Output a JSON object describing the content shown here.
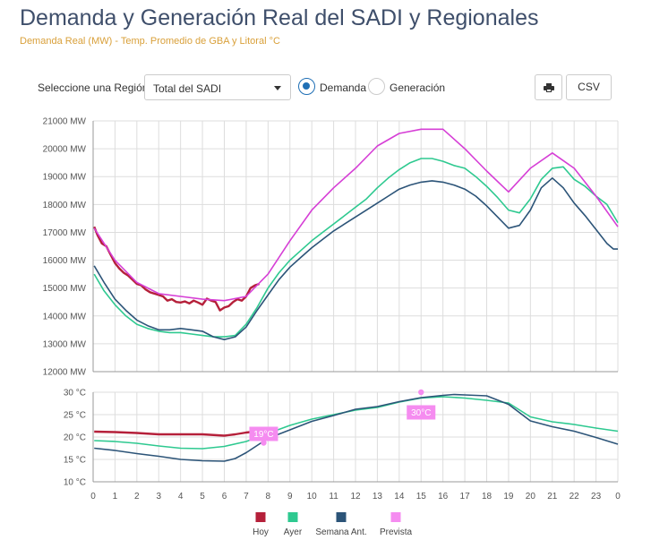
{
  "title": "Demanda y Generación Real del SADI y Regionales",
  "subtitle": "Demanda Real (MW) - Temp. Promedio de GBA y Litoral °C",
  "toolbar": {
    "region_label": "Seleccione una Región",
    "region_value": "Total del SADI",
    "radio_demanda": "Demanda",
    "radio_generacion": "Generación",
    "csv_label": "CSV"
  },
  "colors": {
    "hoy": "#b5203a",
    "ayer": "#2ec990",
    "semana": "#2c5478",
    "prevista": "#d63fd6",
    "prevista_legend": "#f58cf0",
    "grid": "#dddddd"
  },
  "chart_data": [
    {
      "type": "line",
      "title": "",
      "ylim": [
        12000,
        21000
      ],
      "y_unit": "MW",
      "y_ticks": [
        12000,
        13000,
        14000,
        15000,
        16000,
        17000,
        18000,
        19000,
        20000,
        21000
      ],
      "y_tick_labels": [
        "12000 MW",
        "13000 MW",
        "14000 MW",
        "15000 MW",
        "16000 MW",
        "17000 MW",
        "18000 MW",
        "19000 MW",
        "20000 MW",
        "21000 MW"
      ],
      "xlim": [
        0,
        24
      ],
      "series": [
        {
          "name": "Hoy",
          "x": [
            0.05,
            0.2,
            0.4,
            0.6,
            0.8,
            1.0,
            1.2,
            1.4,
            1.6,
            1.8,
            2.0,
            2.2,
            2.4,
            2.6,
            2.8,
            3.0,
            3.2,
            3.4,
            3.6,
            3.8,
            4.0,
            4.2,
            4.4,
            4.6,
            4.8,
            5.0,
            5.2,
            5.4,
            5.6,
            5.8,
            6.0,
            6.2,
            6.4,
            6.6,
            6.8,
            7.0,
            7.2,
            7.4,
            7.6
          ],
          "values": [
            17200,
            16900,
            16600,
            16500,
            16200,
            15900,
            15700,
            15550,
            15450,
            15300,
            15150,
            15100,
            14950,
            14850,
            14800,
            14750,
            14700,
            14550,
            14600,
            14500,
            14480,
            14520,
            14450,
            14550,
            14480,
            14400,
            14620,
            14550,
            14500,
            14200,
            14300,
            14350,
            14500,
            14600,
            14550,
            14700,
            15000,
            15100,
            15150
          ]
        },
        {
          "name": "Ayer",
          "x": [
            0.05,
            0.5,
            1.0,
            1.5,
            2.0,
            2.5,
            3.0,
            3.5,
            4.0,
            4.5,
            5.0,
            5.5,
            6.0,
            6.5,
            7.0,
            7.5,
            8.0,
            8.5,
            9.0,
            9.5,
            10.0,
            10.5,
            11.0,
            11.5,
            12.0,
            12.5,
            13.0,
            13.5,
            14.0,
            14.5,
            15.0,
            15.5,
            16.0,
            16.5,
            17.0,
            17.5,
            18.0,
            18.5,
            19.0,
            19.5,
            20.0,
            20.5,
            21.0,
            21.5,
            22.0,
            22.5,
            23.0,
            23.5,
            24.0
          ],
          "values": [
            15500,
            14900,
            14400,
            14000,
            13700,
            13550,
            13450,
            13400,
            13400,
            13350,
            13300,
            13250,
            13250,
            13300,
            13700,
            14300,
            15000,
            15550,
            16000,
            16350,
            16700,
            17000,
            17300,
            17600,
            17900,
            18200,
            18600,
            18950,
            19250,
            19500,
            19650,
            19650,
            19550,
            19400,
            19300,
            19000,
            18650,
            18250,
            17800,
            17700,
            18200,
            18900,
            19300,
            19350,
            18900,
            18650,
            18300,
            18000,
            17350
          ]
        },
        {
          "name": "Semana Ant.",
          "x": [
            0.05,
            0.5,
            1.0,
            1.5,
            2.0,
            2.5,
            3.0,
            3.5,
            4.0,
            4.5,
            5.0,
            5.5,
            6.0,
            6.5,
            7.0,
            7.5,
            8.0,
            8.5,
            9.0,
            9.5,
            10.0,
            10.5,
            11.0,
            11.5,
            12.0,
            12.5,
            13.0,
            13.5,
            14.0,
            14.5,
            15.0,
            15.5,
            16.0,
            16.5,
            17.0,
            17.5,
            18.0,
            18.5,
            19.0,
            19.5,
            20.0,
            20.5,
            21.0,
            21.5,
            22.0,
            22.5,
            23.0,
            23.5,
            23.8,
            24.0
          ],
          "values": [
            15800,
            15200,
            14600,
            14200,
            13850,
            13650,
            13500,
            13500,
            13550,
            13500,
            13450,
            13250,
            13150,
            13250,
            13600,
            14200,
            14750,
            15300,
            15750,
            16100,
            16450,
            16750,
            17050,
            17300,
            17550,
            17800,
            18050,
            18300,
            18550,
            18700,
            18800,
            18850,
            18800,
            18700,
            18550,
            18300,
            17950,
            17550,
            17150,
            17250,
            17800,
            18600,
            18950,
            18600,
            18050,
            17600,
            17100,
            16600,
            16400,
            16400
          ]
        },
        {
          "name": "Prevista",
          "x": [
            0.05,
            1.0,
            2.0,
            3.0,
            4.0,
            5.0,
            6.0,
            7.0,
            8.0,
            9.0,
            10.0,
            11.0,
            12.0,
            13.0,
            14.0,
            15.0,
            16.0,
            17.0,
            18.0,
            19.0,
            20.0,
            21.0,
            22.0,
            23.0,
            24.0
          ],
          "values": [
            17150,
            16000,
            15200,
            14800,
            14700,
            14600,
            14550,
            14700,
            15500,
            16700,
            17800,
            18600,
            19300,
            20100,
            20550,
            20700,
            20700,
            20000,
            19200,
            18450,
            19300,
            19850,
            19300,
            18300,
            17200
          ]
        }
      ]
    },
    {
      "type": "line",
      "title": "",
      "ylim": [
        10,
        30
      ],
      "y_unit": "°C",
      "y_ticks": [
        10,
        15,
        20,
        25,
        30
      ],
      "y_tick_labels": [
        "10 °C",
        "15 °C",
        "20 °C",
        "25 °C",
        "30 °C"
      ],
      "xlim": [
        0,
        24
      ],
      "x_tick_labels": [
        "0",
        "1",
        "2",
        "3",
        "4",
        "5",
        "6",
        "7",
        "8",
        "9",
        "10",
        "11",
        "12",
        "13",
        "14",
        "15",
        "16",
        "17",
        "18",
        "19",
        "20",
        "21",
        "22",
        "23",
        "0"
      ],
      "series": [
        {
          "name": "Hoy",
          "x": [
            0.05,
            1,
            2,
            3,
            4,
            5,
            6,
            6.5,
            7,
            7.5,
            7.6
          ],
          "values": [
            21.2,
            21.1,
            20.9,
            20.6,
            20.6,
            20.6,
            20.3,
            20.6,
            21.0,
            21.3,
            21.4
          ]
        },
        {
          "name": "Ayer",
          "x": [
            0.05,
            1,
            2,
            3,
            4,
            5,
            6,
            7,
            8,
            9,
            10,
            11,
            12,
            13,
            14,
            15,
            16,
            17,
            18,
            19,
            20,
            21,
            22,
            23,
            24
          ],
          "values": [
            19.2,
            19.0,
            18.6,
            18.0,
            17.5,
            17.4,
            17.9,
            19.0,
            20.8,
            22.6,
            24.0,
            25.0,
            26.0,
            26.6,
            27.8,
            28.7,
            29.0,
            28.7,
            28.2,
            27.6,
            24.5,
            23.4,
            22.8,
            22.0,
            21.3
          ]
        },
        {
          "name": "Semana Ant.",
          "x": [
            0.05,
            1,
            2,
            3,
            4,
            5,
            6,
            6.5,
            7,
            8,
            9,
            10,
            11,
            12,
            13,
            14,
            15,
            16,
            16.5,
            17,
            18,
            19,
            20,
            21,
            22,
            23,
            24
          ],
          "values": [
            17.5,
            17.0,
            16.3,
            15.7,
            15.0,
            14.7,
            14.6,
            15.2,
            16.5,
            19.7,
            21.6,
            23.5,
            24.8,
            26.2,
            26.8,
            27.9,
            28.8,
            29.3,
            29.5,
            29.4,
            29.2,
            27.3,
            23.6,
            22.3,
            21.3,
            19.9,
            18.4
          ]
        },
        {
          "name": "Prevista",
          "type": "scatter",
          "x": [
            7.8,
            15.0
          ],
          "values": [
            18.7,
            30.0
          ]
        }
      ],
      "annotations": [
        {
          "text": "19°C",
          "x": 7.8,
          "y": 20.7
        },
        {
          "text": "30°C",
          "x": 15.0,
          "y": 25.5
        }
      ]
    }
  ],
  "legend": {
    "items": [
      {
        "name": "Hoy"
      },
      {
        "name": "Ayer"
      },
      {
        "name": "Semana Ant."
      },
      {
        "name": "Prevista"
      }
    ]
  }
}
